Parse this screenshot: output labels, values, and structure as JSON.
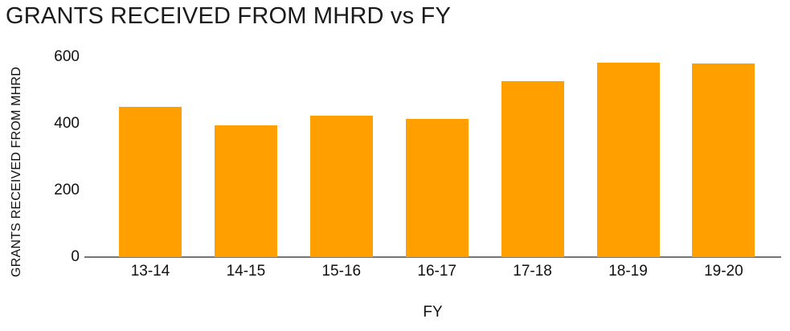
{
  "chart_data": {
    "type": "bar",
    "title": "GRANTS RECEIVED FROM MHRD vs FY",
    "xlabel": "FY",
    "ylabel": "GRANTS RECEIVED FROM MHRD",
    "categories": [
      "13-14",
      "14-15",
      "15-16",
      "16-17",
      "17-18",
      "18-19",
      "19-20"
    ],
    "values": [
      450,
      394,
      424,
      414,
      527,
      583,
      579
    ],
    "ylim": [
      0,
      600
    ],
    "yticks": [
      0,
      200,
      400,
      600
    ],
    "grid": false,
    "legend": "none",
    "bar_color": "#FF9F00",
    "axis_color": "#757575",
    "text_color": "#111111"
  }
}
